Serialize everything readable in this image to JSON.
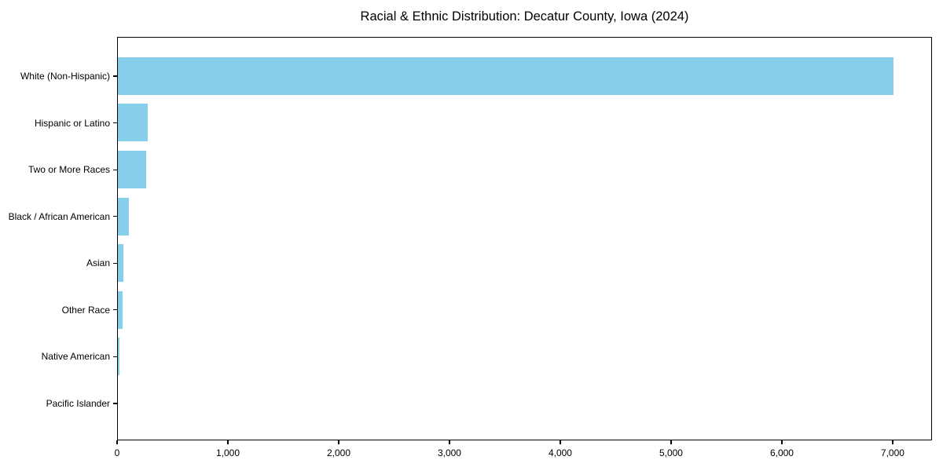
{
  "title": "Racial & Ethnic Distribution: Decatur County, Iowa (2024)",
  "colors": {
    "bar": "#87CEEB",
    "axis": "#000000",
    "text": "#000000",
    "background": "#FFFFFF"
  },
  "chart_data": {
    "type": "bar",
    "orientation": "horizontal",
    "title": "Racial & Ethnic Distribution: Decatur County, Iowa (2024)",
    "categories": [
      "White (Non-Hispanic)",
      "Hispanic or Latino",
      "Two or More Races",
      "Black / African American",
      "Asian",
      "Other Race",
      "Native American",
      "Pacific Islander"
    ],
    "values": [
      7000,
      270,
      255,
      100,
      52,
      42,
      15,
      0
    ],
    "xlabel": "",
    "ylabel": "",
    "xlim": [
      0,
      7355
    ],
    "x_ticks": [
      0,
      1000,
      2000,
      3000,
      4000,
      5000,
      6000,
      7000
    ],
    "x_tick_labels": [
      "0",
      "1,000",
      "2,000",
      "3,000",
      "4,000",
      "5,000",
      "6,000",
      "7,000"
    ],
    "bar_color": "#87CEEB",
    "grid": false,
    "legend": null
  }
}
